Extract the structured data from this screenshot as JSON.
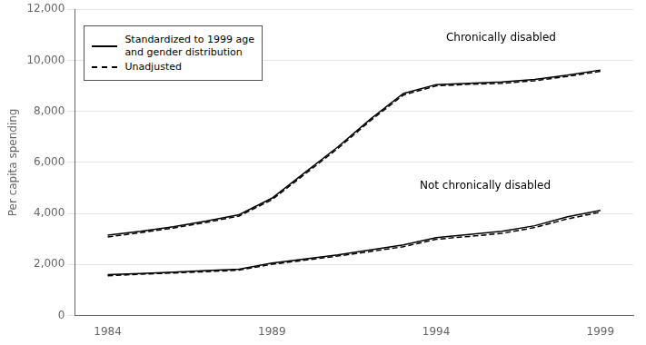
{
  "chart_data": {
    "type": "line",
    "ylabel": "Per capita spending",
    "x": [
      1984,
      1985,
      1986,
      1987,
      1988,
      1989,
      1990,
      1991,
      1992,
      1993,
      1994,
      1995,
      1996,
      1997,
      1998,
      1999
    ],
    "series": [
      {
        "name": "Standardized to 1999 age\nand gender distribution",
        "color": "#000000",
        "line_style": "solid",
        "values": [
          3150,
          3300,
          3480,
          3700,
          3950,
          4600,
          5600,
          6600,
          7700,
          8700,
          9050,
          9100,
          9150,
          9250,
          9420,
          9620
        ]
      },
      {
        "name": "Unadjusted",
        "color": "#000000",
        "line_style": "dashed",
        "values": [
          3080,
          3250,
          3430,
          3650,
          3900,
          4540,
          5540,
          6540,
          7640,
          8640,
          9000,
          9060,
          9100,
          9200,
          9370,
          9570
        ]
      },
      {
        "name": "Standardized to 1999 age\nand gender distribution",
        "color": "#000000",
        "line_style": "solid",
        "values": [
          1600,
          1650,
          1700,
          1760,
          1820,
          2060,
          2220,
          2380,
          2570,
          2770,
          3050,
          3180,
          3300,
          3520,
          3870,
          4120
        ]
      },
      {
        "name": "Unadjusted",
        "color": "#000000",
        "line_style": "dashed",
        "values": [
          1560,
          1620,
          1670,
          1720,
          1780,
          2010,
          2170,
          2330,
          2510,
          2700,
          2990,
          3100,
          3220,
          3450,
          3790,
          4050
        ]
      }
    ],
    "xlim": [
      1983,
      2000
    ],
    "xticks": [
      1984,
      1989,
      1994,
      1999
    ],
    "ylim": [
      0,
      12000
    ],
    "yticks": [
      0,
      {
        "value": 2000,
        "label": "2,000"
      },
      {
        "value": 4000,
        "label": "4,000"
      },
      {
        "value": 6000,
        "label": "6,000"
      },
      {
        "value": 8000,
        "label": "8,000"
      },
      {
        "value": 10000,
        "label": "10,000"
      },
      {
        "value": 12000,
        "label": "12,000"
      }
    ],
    "grid": "y",
    "legend": "upper left",
    "annotations": [
      {
        "text": "Chronically disabled",
        "x": 1994.3,
        "y": 11100
      },
      {
        "text": "Not chronically disabled",
        "x": 1993.5,
        "y": 5300
      }
    ]
  }
}
